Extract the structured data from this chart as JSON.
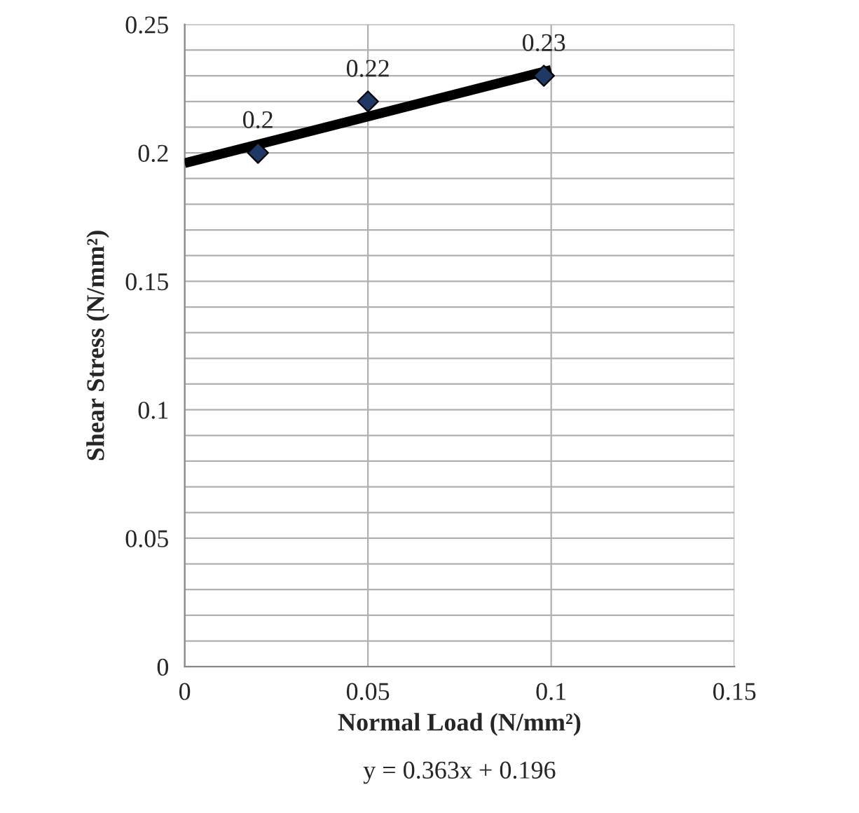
{
  "chart_data": {
    "type": "scatter",
    "xlabel": "Normal Load (N/mm²)",
    "ylabel": "Shear Stress (N/mm²)",
    "x": [
      0.02,
      0.05,
      0.098
    ],
    "series": [
      {
        "color": "#1f3864",
        "values": [
          0.2,
          0.22,
          0.23
        ],
        "value_labels": [
          "0.2",
          "0.22",
          "0.23"
        ],
        "marker": "diamond"
      },
      {
        "type": "line",
        "color": "#000000",
        "x": [
          0,
          0.1
        ],
        "values": [
          0.196,
          0.2323
        ],
        "marker": "none",
        "line_style": "solid"
      }
    ],
    "xlim": [
      0,
      0.15
    ],
    "xticks": [
      0,
      0.05,
      0.1,
      0.15
    ],
    "ylim": [
      0,
      0.25
    ],
    "yticks": [
      0,
      {
        "value": 0.01,
        "label": null
      },
      {
        "value": 0.02,
        "label": null
      },
      {
        "value": 0.03,
        "label": null
      },
      {
        "value": 0.04,
        "label": null
      },
      0.05,
      {
        "value": 0.06,
        "label": null
      },
      {
        "value": 0.07,
        "label": null
      },
      {
        "value": 0.08,
        "label": null
      },
      {
        "value": 0.09,
        "label": null
      },
      0.1,
      {
        "value": 0.11,
        "label": null
      },
      {
        "value": 0.12,
        "label": null
      },
      {
        "value": 0.13,
        "label": null
      },
      {
        "value": 0.14,
        "label": null
      },
      0.15,
      {
        "value": 0.16,
        "label": null
      },
      {
        "value": 0.17,
        "label": null
      },
      {
        "value": 0.18,
        "label": null
      },
      {
        "value": 0.19,
        "label": null
      },
      0.2,
      {
        "value": 0.21,
        "label": null
      },
      {
        "value": 0.22,
        "label": null
      },
      {
        "value": 0.23,
        "label": null
      },
      {
        "value": 0.24,
        "label": null
      },
      0.25
    ],
    "grid": true,
    "annotations": [
      "y = 0.363x + 0.196"
    ]
  }
}
